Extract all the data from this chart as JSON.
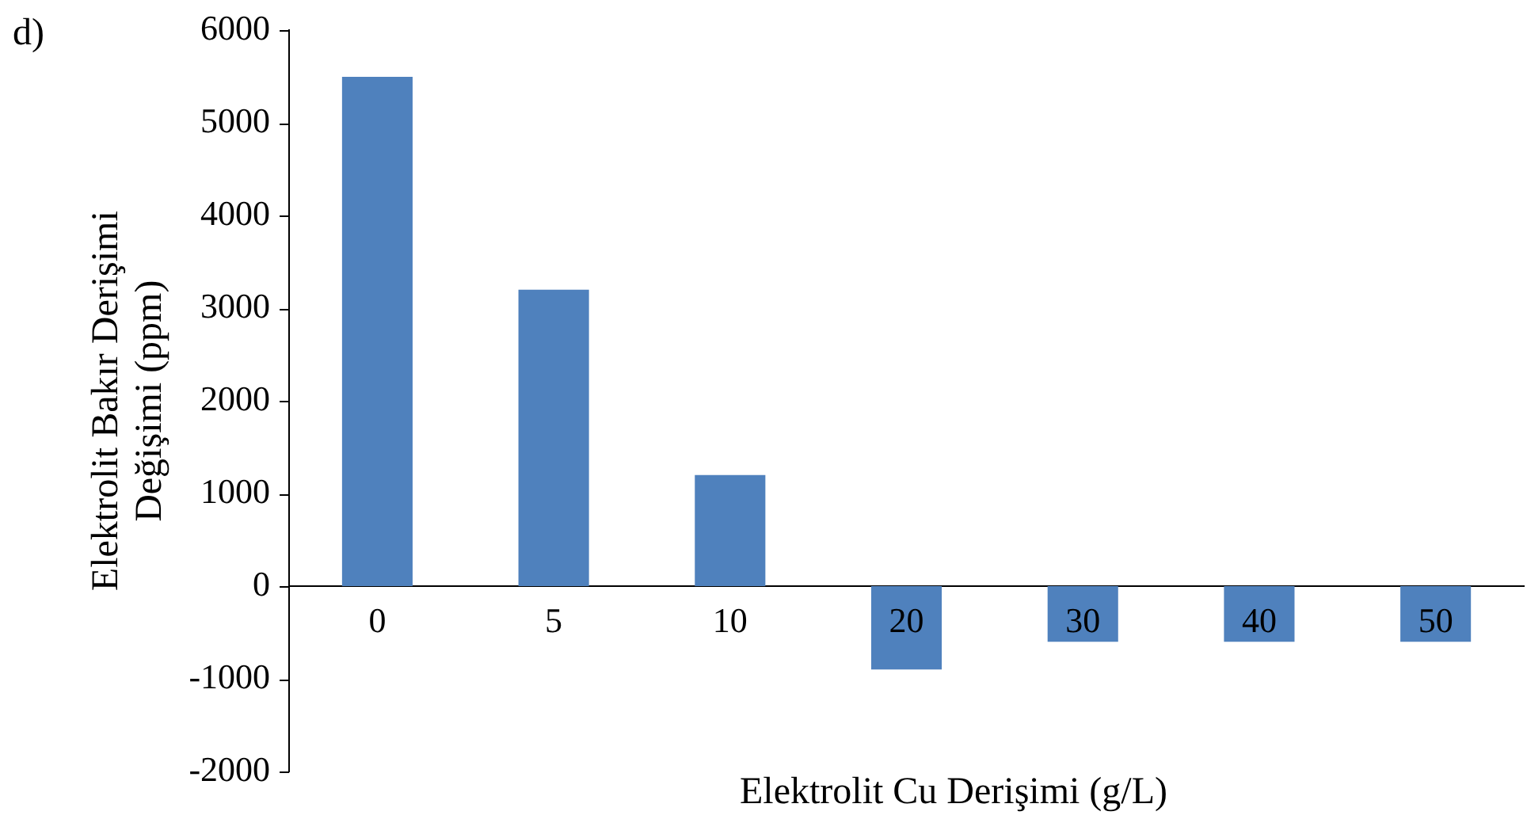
{
  "chart_data": {
    "type": "bar",
    "xlabel": "Elektrolit Cu Derişimi (g/L)",
    "ylabel": "Elektrolit Bakır Derişimi\nDeğişimi (ppm)",
    "annotations": [
      "d)"
    ],
    "categories": [
      "0",
      "5",
      "10",
      "20",
      "30",
      "40",
      "50"
    ],
    "values": [
      5500,
      3200,
      1200,
      -900,
      -600,
      -600,
      -600
    ],
    "color": "#4f81bd",
    "ylim": [
      -2000,
      6000
    ],
    "yticks": [
      -2000,
      -1000,
      0,
      1000,
      2000,
      3000,
      4000,
      5000,
      6000
    ],
    "grid": false,
    "legend": false
  }
}
